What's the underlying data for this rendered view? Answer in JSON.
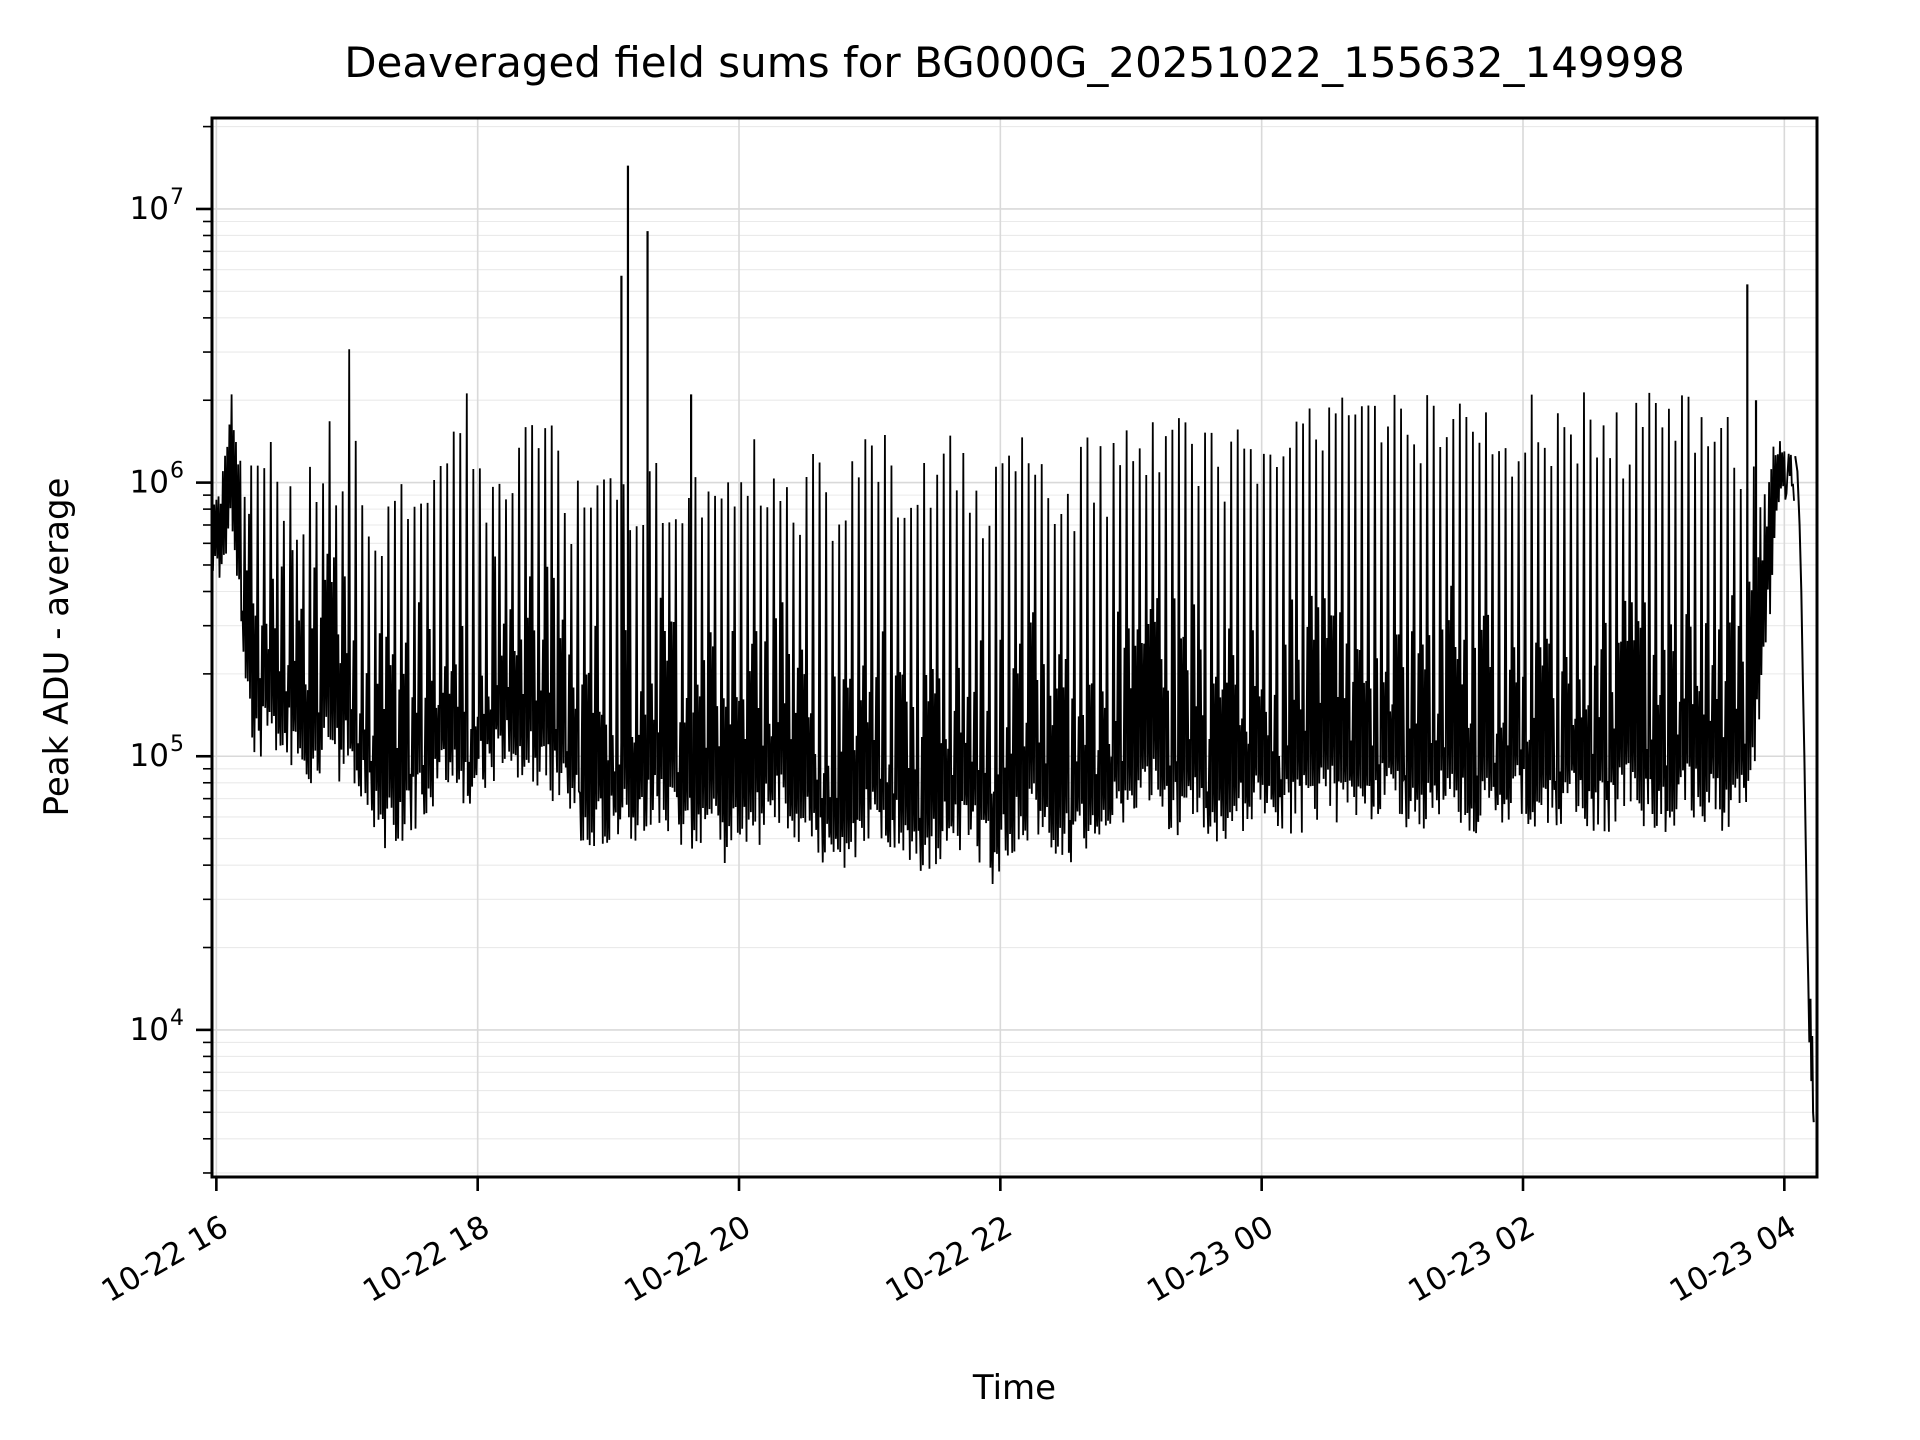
{
  "title": "Deaveraged field sums for BG000G_20251022_155632_149998",
  "chart_data": {
    "type": "line",
    "title": "Deaveraged field sums for BG000G_20251022_155632_149998",
    "xlabel": "Time",
    "ylabel": "Peak ADU - average",
    "yscale": "log",
    "ylim": [
      2900,
      21500000
    ],
    "grid": true,
    "legend": "none",
    "line_color": "#000000",
    "grid_major_color": "#d9d9d9",
    "grid_minor_color": "#eaeaea",
    "background_color": "#ffffff",
    "x_tick_labels": [
      "10-22 16",
      "10-22 18",
      "10-22 20",
      "10-22 22",
      "10-23 00",
      "10-23 02",
      "10-23 04"
    ],
    "x_tick_minutes": [
      2,
      122,
      242,
      362,
      482,
      602,
      722
    ],
    "y_tick_exponents": [
      4,
      5,
      6,
      7
    ],
    "time_span_minutes": 737,
    "time_origin": "2025-10-22 15:58",
    "envelope_t_lo_hi": [
      [
        0,
        550000,
        800000
      ],
      [
        3,
        500000,
        900000
      ],
      [
        6,
        600000,
        1500000
      ],
      [
        9,
        650000,
        1700000
      ],
      [
        12,
        400000,
        1300000
      ],
      [
        16,
        180000,
        950000
      ],
      [
        20,
        120000,
        850000
      ],
      [
        25,
        140000,
        1000000
      ],
      [
        30,
        130000,
        1100000
      ],
      [
        35,
        120000,
        900000
      ],
      [
        40,
        100000,
        850000
      ],
      [
        45,
        90000,
        950000
      ],
      [
        50,
        110000,
        1200000
      ],
      [
        54,
        120000,
        2400000
      ],
      [
        58,
        100000,
        900000
      ],
      [
        63,
        110000,
        2400000
      ],
      [
        67,
        90000,
        850000
      ],
      [
        72,
        70000,
        750000
      ],
      [
        78,
        55000,
        650000
      ],
      [
        84,
        60000,
        700000
      ],
      [
        90,
        65000,
        850000
      ],
      [
        96,
        70000,
        1200000
      ],
      [
        102,
        80000,
        1100000
      ],
      [
        108,
        90000,
        1400000
      ],
      [
        114,
        85000,
        2200000
      ],
      [
        118,
        80000,
        2100000
      ],
      [
        122,
        90000,
        1100000
      ],
      [
        127,
        100000,
        950000
      ],
      [
        132,
        110000,
        1000000
      ],
      [
        137,
        120000,
        900000
      ],
      [
        142,
        100000,
        1300000
      ],
      [
        146,
        100000,
        2500000
      ],
      [
        150,
        95000,
        1600000
      ],
      [
        153,
        90000,
        2200000
      ],
      [
        157,
        85000,
        1100000
      ],
      [
        162,
        75000,
        900000
      ],
      [
        168,
        65000,
        800000
      ],
      [
        174,
        55000,
        700000
      ],
      [
        180,
        60000,
        800000
      ],
      [
        186,
        65000,
        900000
      ],
      [
        193,
        60000,
        850000
      ],
      [
        200,
        65000,
        1000000
      ],
      [
        207,
        70000,
        900000
      ],
      [
        214,
        60000,
        800000
      ],
      [
        220,
        55000,
        750000
      ],
      [
        226,
        60000,
        900000
      ],
      [
        232,
        55000,
        800000
      ],
      [
        238,
        50000,
        750000
      ],
      [
        244,
        55000,
        1100000
      ],
      [
        250,
        60000,
        1300000
      ],
      [
        256,
        65000,
        950000
      ],
      [
        262,
        70000,
        1200000
      ],
      [
        268,
        60000,
        850000
      ],
      [
        274,
        55000,
        1000000
      ],
      [
        280,
        50000,
        900000
      ],
      [
        286,
        45000,
        750000
      ],
      [
        292,
        50000,
        1100000
      ],
      [
        298,
        60000,
        1400000
      ],
      [
        304,
        65000,
        1500000
      ],
      [
        310,
        60000,
        1200000
      ],
      [
        316,
        55000,
        900000
      ],
      [
        322,
        50000,
        800000
      ],
      [
        328,
        45000,
        950000
      ],
      [
        334,
        50000,
        1200000
      ],
      [
        340,
        60000,
        1400000
      ],
      [
        346,
        55000,
        1100000
      ],
      [
        352,
        50000,
        900000
      ],
      [
        358,
        43000,
        850000
      ],
      [
        364,
        50000,
        1000000
      ],
      [
        370,
        60000,
        1500000
      ],
      [
        376,
        65000,
        1300000
      ],
      [
        382,
        60000,
        1000000
      ],
      [
        388,
        55000,
        900000
      ],
      [
        394,
        50000,
        850000
      ],
      [
        400,
        60000,
        1200000
      ],
      [
        406,
        45000,
        950000
      ],
      [
        412,
        60000,
        1100000
      ],
      [
        418,
        70000,
        1200000
      ],
      [
        424,
        70000,
        1300000
      ],
      [
        430,
        80000,
        1300000
      ],
      [
        436,
        70000,
        1400000
      ],
      [
        442,
        65000,
        1200000
      ],
      [
        448,
        70000,
        1500000
      ],
      [
        454,
        65000,
        1300000
      ],
      [
        460,
        60000,
        1400000
      ],
      [
        466,
        50000,
        1200000
      ],
      [
        472,
        65000,
        1500000
      ],
      [
        478,
        70000,
        1400000
      ],
      [
        484,
        65000,
        1500000
      ],
      [
        490,
        70000,
        1600000
      ],
      [
        497,
        65000,
        1500000
      ],
      [
        504,
        70000,
        1400000
      ],
      [
        511,
        75000,
        1500000
      ],
      [
        518,
        70000,
        1600000
      ],
      [
        525,
        65000,
        1500000
      ],
      [
        532,
        70000,
        1400000
      ],
      [
        539,
        75000,
        1600000
      ],
      [
        546,
        70000,
        1500000
      ],
      [
        553,
        65000,
        1400000
      ],
      [
        560,
        70000,
        1600000
      ],
      [
        567,
        75000,
        1500000
      ],
      [
        574,
        70000,
        1500000
      ],
      [
        581,
        65000,
        1600000
      ],
      [
        588,
        70000,
        1500000
      ],
      [
        595,
        75000,
        1400000
      ],
      [
        602,
        70000,
        1500000
      ],
      [
        609,
        65000,
        1600000
      ],
      [
        616,
        70000,
        1500000
      ],
      [
        623,
        75000,
        1500000
      ],
      [
        630,
        70000,
        1600000
      ],
      [
        637,
        65000,
        1500000
      ],
      [
        644,
        70000,
        1400000
      ],
      [
        651,
        75000,
        1500000
      ],
      [
        658,
        70000,
        1600000
      ],
      [
        665,
        65000,
        1500000
      ],
      [
        672,
        70000,
        1500000
      ],
      [
        679,
        75000,
        1600000
      ],
      [
        686,
        70000,
        1500000
      ],
      [
        693,
        65000,
        1400000
      ],
      [
        700,
        70000,
        1500000
      ],
      [
        704,
        80000,
        1200000
      ],
      [
        708,
        120000,
        1500000
      ],
      [
        711,
        200000,
        1000000
      ],
      [
        714,
        350000,
        900000
      ],
      [
        717,
        600000,
        1250000
      ],
      [
        722,
        950000,
        1300000
      ],
      [
        726,
        1050000,
        1250000
      ]
    ],
    "spikes_t_value": [
      [
        188,
        5700000
      ],
      [
        191,
        14400000
      ],
      [
        200,
        8300000
      ],
      [
        220,
        2100000
      ],
      [
        705,
        5300000
      ],
      [
        709,
        2000000
      ]
    ],
    "tail_t_value": [
      [
        727,
        1250000
      ],
      [
        728,
        1100000
      ],
      [
        729,
        700000
      ],
      [
        729.8,
        400000
      ],
      [
        730.5,
        190000
      ],
      [
        731.2,
        100000
      ],
      [
        731.8,
        50000
      ],
      [
        732.4,
        25000
      ],
      [
        733,
        15000
      ],
      [
        733.5,
        9000
      ],
      [
        734,
        13000
      ],
      [
        734.4,
        6500
      ],
      [
        734.8,
        9500
      ],
      [
        735.2,
        5000
      ],
      [
        735.5,
        4600
      ]
    ]
  }
}
